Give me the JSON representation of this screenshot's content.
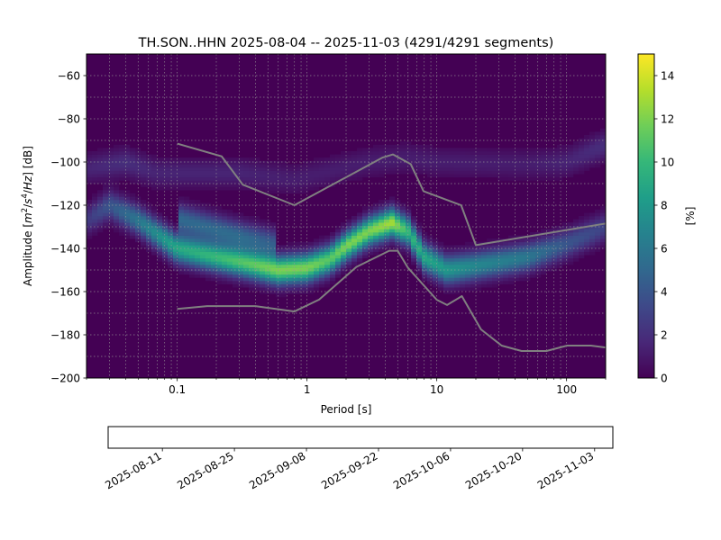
{
  "chart_data": {
    "type": "heatmap",
    "title": "TH.SON..HHN   2025-08-04 -- 2025-11-03  (4291/4291 segments)",
    "xlabel": "Period [s]",
    "ylabel_parts": [
      "Amplitude [",
      "m",
      "2",
      "/",
      "s",
      "4",
      "/",
      "Hz",
      "] [dB]"
    ],
    "x_scale": "log",
    "xlim": [
      0.02,
      200
    ],
    "ylim": [
      -200,
      -50
    ],
    "x_ticks": [
      {
        "value": 0.1,
        "label": "0.1"
      },
      {
        "value": 1,
        "label": "1"
      },
      {
        "value": 10,
        "label": "10"
      },
      {
        "value": 100,
        "label": "100"
      }
    ],
    "y_ticks": [
      {
        "value": -60,
        "label": "−60"
      },
      {
        "value": -80,
        "label": "−80"
      },
      {
        "value": -100,
        "label": "−100"
      },
      {
        "value": -120,
        "label": "−120"
      },
      {
        "value": -140,
        "label": "−140"
      },
      {
        "value": -160,
        "label": "−160"
      },
      {
        "value": -180,
        "label": "−180"
      },
      {
        "value": -200,
        "label": "−200"
      }
    ],
    "grid": true,
    "colorbar": {
      "label": "[%]",
      "range": [
        0,
        15
      ],
      "ticks": [
        {
          "value": 0,
          "label": "0"
        },
        {
          "value": 2,
          "label": "2"
        },
        {
          "value": 4,
          "label": "4"
        },
        {
          "value": 6,
          "label": "6"
        },
        {
          "value": 8,
          "label": "8"
        },
        {
          "value": 10,
          "label": "10"
        },
        {
          "value": 12,
          "label": "12"
        },
        {
          "value": 14,
          "label": "14"
        }
      ],
      "colormap": "viridis",
      "colors": [
        "#440154",
        "#482878",
        "#3e4989",
        "#31688e",
        "#26828e",
        "#1f9e89",
        "#35b779",
        "#6ece58",
        "#b5de2b",
        "#fde725"
      ]
    },
    "density_ridges": [
      {
        "points": [
          [
            0.02,
            -127
          ],
          [
            0.03,
            -120
          ],
          [
            0.05,
            -127
          ],
          [
            0.1,
            -140
          ],
          [
            0.2,
            -144
          ],
          [
            0.35,
            -147
          ],
          [
            0.6,
            -150
          ],
          [
            1.0,
            -149
          ],
          [
            1.5,
            -145
          ],
          [
            2.0,
            -139
          ],
          [
            3.0,
            -132
          ],
          [
            4.5,
            -128
          ],
          [
            6.0,
            -132
          ],
          [
            8.0,
            -144
          ],
          [
            12.0,
            -150
          ],
          [
            20.0,
            -148
          ],
          [
            50.0,
            -144
          ],
          [
            100.0,
            -138
          ],
          [
            200.0,
            -130
          ]
        ],
        "peak_percent": [
          2.5,
          4,
          6,
          9,
          10,
          11,
          12,
          12,
          11,
          12,
          12,
          13,
          10,
          9,
          8,
          7,
          6,
          4,
          3
        ]
      },
      {
        "points": [
          [
            0.02,
            -103
          ],
          [
            0.04,
            -100
          ],
          [
            0.07,
            -105
          ],
          [
            0.3,
            -105
          ],
          [
            0.8,
            -108
          ],
          [
            3.0,
            -100
          ],
          [
            6.0,
            -98
          ],
          [
            10.0,
            -100
          ],
          [
            50.0,
            -101
          ],
          [
            100.0,
            -100
          ],
          [
            200.0,
            -92
          ]
        ],
        "peak_percent": [
          1.5,
          2,
          1.5,
          1.5,
          1.2,
          1.2,
          1.2,
          1.2,
          1.2,
          1.5,
          2
        ]
      },
      {
        "points": [
          [
            0.1,
            -126
          ],
          [
            0.3,
            -134
          ],
          [
            0.6,
            -138
          ]
        ],
        "peak_percent": [
          5,
          5,
          4
        ]
      }
    ],
    "noise_models": [
      {
        "name": "high",
        "color": "#808080",
        "points": [
          [
            0.1,
            -91.5
          ],
          [
            0.22,
            -97.4
          ],
          [
            0.32,
            -110.5
          ],
          [
            0.8,
            -120
          ],
          [
            3.8,
            -98
          ],
          [
            4.6,
            -96.5
          ],
          [
            6.3,
            -101
          ],
          [
            7.9,
            -113.5
          ],
          [
            15.4,
            -120
          ],
          [
            20,
            -138.5
          ],
          [
            354.8,
            -126
          ]
        ]
      },
      {
        "name": "low",
        "color": "#808080",
        "points": [
          [
            0.1,
            -168
          ],
          [
            0.17,
            -166.7
          ],
          [
            0.4,
            -166.7
          ],
          [
            0.8,
            -169.2
          ],
          [
            1.24,
            -163.7
          ],
          [
            2.4,
            -148.6
          ],
          [
            4.3,
            -141.1
          ],
          [
            5.0,
            -141.1
          ],
          [
            6.0,
            -149
          ],
          [
            10.0,
            -163.8
          ],
          [
            12.0,
            -166.2
          ],
          [
            15.6,
            -162.1
          ],
          [
            21.9,
            -177.5
          ],
          [
            31.6,
            -185
          ],
          [
            45,
            -187.5
          ],
          [
            70,
            -187.5
          ],
          [
            101,
            -185
          ],
          [
            154,
            -185
          ],
          [
            328,
            -187.5
          ]
        ]
      }
    ]
  },
  "timeline": {
    "ticks": [
      {
        "date": "2025-08-11",
        "label": "2025-08-11"
      },
      {
        "date": "2025-08-25",
        "label": "2025-08-25"
      },
      {
        "date": "2025-09-08",
        "label": "2025-09-08"
      },
      {
        "date": "2025-09-22",
        "label": "2025-09-22"
      },
      {
        "date": "2025-10-06",
        "label": "2025-10-06"
      },
      {
        "date": "2025-10-20",
        "label": "2025-10-20"
      },
      {
        "date": "2025-11-03",
        "label": "2025-11-03"
      }
    ],
    "data_color": "#0000ff",
    "coverage_color": "#008000",
    "gap_color": "#ff0000",
    "data_start": "2025-08-04",
    "data_end": "2025-11-03"
  }
}
